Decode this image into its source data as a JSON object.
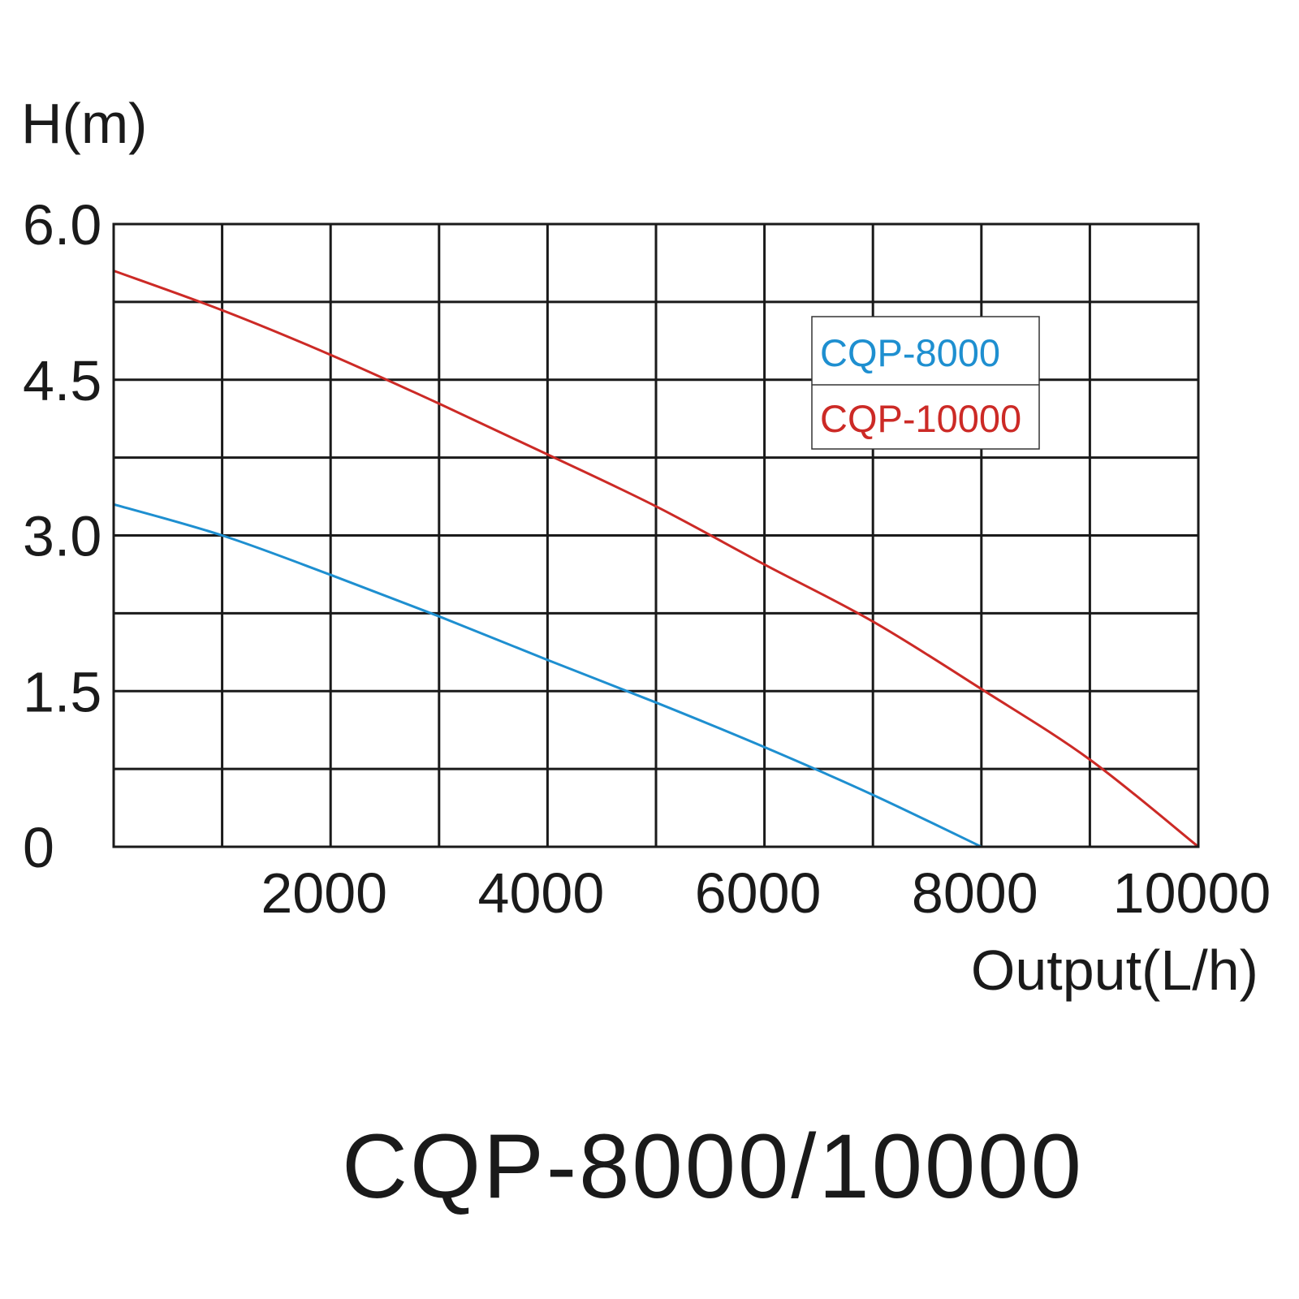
{
  "chart_data": {
    "type": "line",
    "title": "CQP-8000/10000",
    "xlabel": "Output(L/h)",
    "ylabel": "H(m)",
    "xlim": [
      0,
      10000
    ],
    "ylim": [
      0,
      6.0
    ],
    "x_ticks": [
      2000,
      4000,
      6000,
      8000,
      10000
    ],
    "x_tick_labels": [
      "2000",
      "4000",
      "6000",
      "8000",
      "10000"
    ],
    "y_ticks": [
      0,
      1.5,
      3.0,
      4.5,
      6.0
    ],
    "y_tick_labels": [
      "0",
      "1.5",
      "3.0",
      "4.5",
      "6.0"
    ],
    "grid": true,
    "grid_x_step": 1000,
    "grid_y_step": 0.75,
    "legend_position": "top-right",
    "series": [
      {
        "name": "CQP-8000",
        "color": "#1e8fd0",
        "x": [
          0,
          1000,
          2000,
          3000,
          4000,
          5000,
          6000,
          7000,
          8000
        ],
        "y": [
          3.3,
          3.0,
          2.62,
          2.22,
          1.8,
          1.39,
          0.96,
          0.5,
          0.0
        ]
      },
      {
        "name": "CQP-10000",
        "color": "#cc2a26",
        "x": [
          0,
          1000,
          2000,
          3000,
          4000,
          5000,
          6000,
          7000,
          8000,
          9000,
          10000
        ],
        "y": [
          5.55,
          5.17,
          4.74,
          4.27,
          3.78,
          3.28,
          2.72,
          2.17,
          1.52,
          0.84,
          0.0
        ]
      }
    ]
  }
}
